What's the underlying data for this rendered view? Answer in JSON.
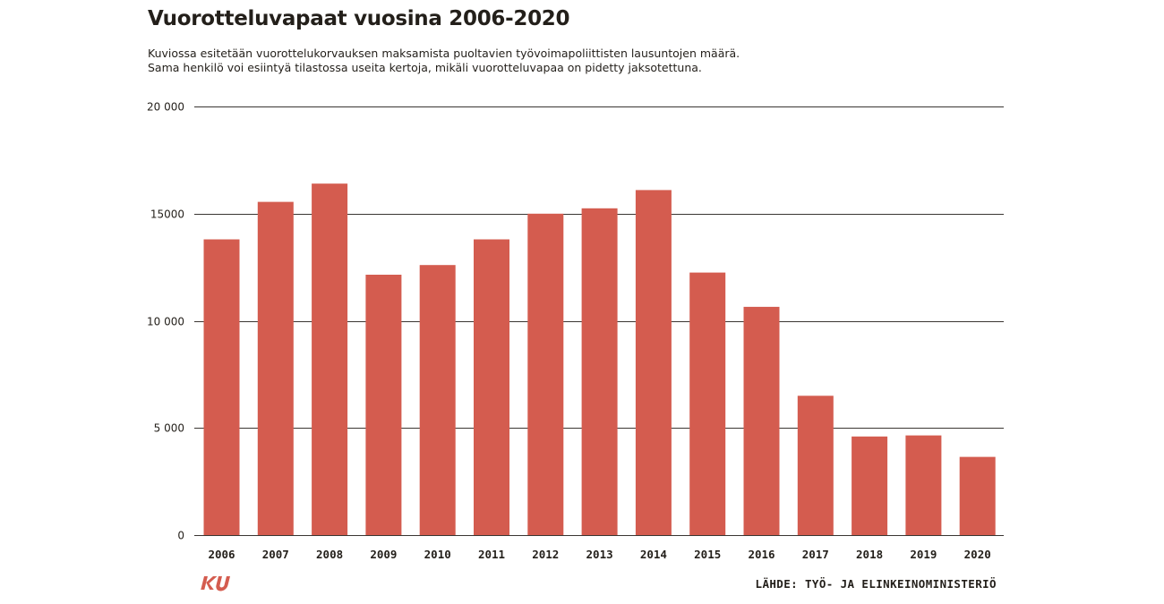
{
  "header": {
    "title": "Vuorotteluvapaat vuosina 2006-2020",
    "subtitle_line1": "Kuviossa esitetään vuorottelukorvauksen maksamista puoltavien työvoimapoliittisten lausuntojen määrä.",
    "subtitle_line2": "Sama henkilö voi esiintyä tilastossa useita kertoja, mikäli vuorotteluvapaa on pidetty jaksotettuna."
  },
  "footer": {
    "logo_text": "KU",
    "source": "LÄHDE: TYÖ- JA ELINKEINOMINISTERIÖ"
  },
  "colors": {
    "bar": "#d45c4f",
    "grid": "#3a3632",
    "text": "#231f1a",
    "logo": "#d45c4f"
  },
  "chart_data": {
    "type": "bar",
    "title": "Vuorotteluvapaat vuosina 2006-2020",
    "xlabel": "",
    "ylabel": "",
    "categories": [
      "2006",
      "2007",
      "2008",
      "2009",
      "2010",
      "2011",
      "2012",
      "2013",
      "2014",
      "2015",
      "2016",
      "2017",
      "2018",
      "2019",
      "2020"
    ],
    "values": [
      13800,
      15550,
      16400,
      12150,
      12600,
      13800,
      15000,
      15250,
      16100,
      12250,
      10650,
      6500,
      4600,
      4650,
      3650
    ],
    "ylim": [
      0,
      20000
    ],
    "yticks": [
      0,
      5000,
      10000,
      15000,
      20000
    ],
    "ytick_labels": [
      "0",
      "5 000",
      "10 000",
      "15000",
      "20 000"
    ],
    "grid": true,
    "legend": "none"
  }
}
